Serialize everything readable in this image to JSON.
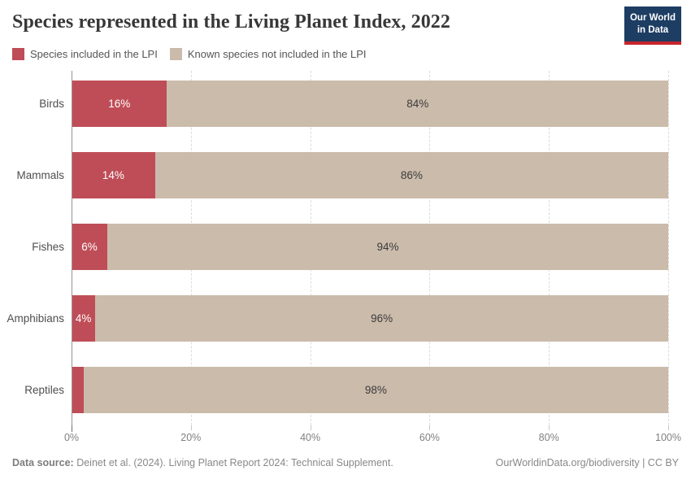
{
  "header": {
    "title": "Species represented in the Living Planet Index, 2022",
    "logo": {
      "line1": "Our World",
      "line2": "in Data"
    }
  },
  "legend": {
    "items": [
      {
        "label": "Species included in the LPI",
        "color": "#bf4d57"
      },
      {
        "label": "Known species not included in the LPI",
        "color": "#cbbbab"
      }
    ]
  },
  "chart_data": {
    "type": "bar",
    "orientation": "horizontal",
    "stacked": true,
    "categories": [
      "Birds",
      "Mammals",
      "Fishes",
      "Amphibians",
      "Reptiles"
    ],
    "series": [
      {
        "name": "Species included in the LPI",
        "color": "#bf4d57",
        "label_color": "#ffffff",
        "values": [
          16,
          14,
          6,
          4,
          2
        ],
        "labels": [
          "16%",
          "14%",
          "6%",
          "4%",
          ""
        ]
      },
      {
        "name": "Known species not included in the LPI",
        "color": "#cbbbab",
        "label_color": "#3b3b3b",
        "values": [
          84,
          86,
          94,
          96,
          98
        ],
        "labels": [
          "84%",
          "86%",
          "94%",
          "96%",
          "98%"
        ]
      }
    ],
    "xlabel": "",
    "ylabel": "",
    "xlim": [
      0,
      100
    ],
    "x_ticks": [
      "0%",
      "20%",
      "40%",
      "60%",
      "80%",
      "100%"
    ],
    "grid": "dashed-vertical-behind-bars",
    "legend_position": "top-left"
  },
  "footer": {
    "source_label": "Data source:",
    "source_text": " Deinet et al. (2024). Living Planet Report 2024: Technical Supplement.",
    "right_text": "OurWorldinData.org/biodiversity | CC BY"
  }
}
